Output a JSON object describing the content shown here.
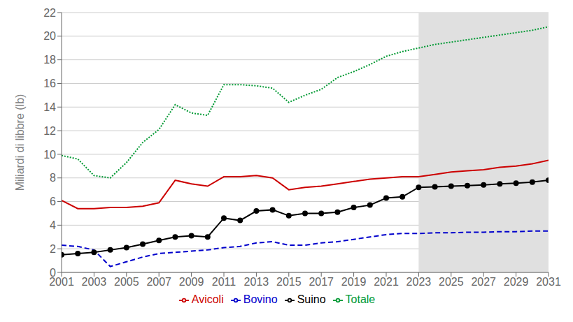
{
  "chart_data": {
    "type": "line",
    "title": "",
    "ylabel": "Miliardi di libbre (lb)",
    "x": [
      2001,
      2002,
      2003,
      2004,
      2005,
      2006,
      2007,
      2008,
      2009,
      2010,
      2011,
      2012,
      2013,
      2014,
      2015,
      2016,
      2017,
      2018,
      2019,
      2020,
      2021,
      2022,
      2023,
      2024,
      2025,
      2026,
      2027,
      2028,
      2029,
      2030,
      2031
    ],
    "series": [
      {
        "name": "Bovino",
        "color": "#0000cc",
        "line_style": "dashed",
        "values": [
          2.3,
          2.2,
          1.9,
          0.5,
          0.9,
          1.3,
          1.6,
          1.7,
          1.8,
          1.9,
          2.1,
          2.2,
          2.5,
          2.6,
          2.3,
          2.3,
          2.5,
          2.6,
          2.8,
          3.0,
          3.2,
          3.3,
          3.3,
          3.35,
          3.35,
          3.4,
          3.4,
          3.45,
          3.45,
          3.5,
          3.5
        ]
      },
      {
        "name": "Suino",
        "color": "#000000",
        "line_style": "solid",
        "marker": "circle",
        "values": [
          1.5,
          1.6,
          1.7,
          1.9,
          2.1,
          2.4,
          2.7,
          3.0,
          3.1,
          3.0,
          4.6,
          4.4,
          5.2,
          5.3,
          4.8,
          5.0,
          5.0,
          5.1,
          5.5,
          5.7,
          6.3,
          6.4,
          7.2,
          7.25,
          7.3,
          7.35,
          7.4,
          7.5,
          7.55,
          7.65,
          7.8
        ]
      },
      {
        "name": "Avicoli",
        "color": "#cc0000",
        "line_style": "solid",
        "values": [
          6.1,
          5.4,
          5.4,
          5.5,
          5.5,
          5.6,
          5.9,
          7.8,
          7.5,
          7.3,
          8.1,
          8.1,
          8.2,
          8.0,
          7.0,
          7.2,
          7.3,
          7.5,
          7.7,
          7.9,
          8.0,
          8.1,
          8.1,
          8.3,
          8.5,
          8.6,
          8.7,
          8.9,
          9.0,
          9.2,
          9.5
        ]
      },
      {
        "name": "Totale",
        "color": "#009933",
        "line_style": "dotted",
        "values": [
          9.9,
          9.6,
          8.2,
          8.0,
          9.3,
          11.0,
          12.1,
          14.2,
          13.5,
          13.3,
          15.9,
          15.9,
          15.8,
          15.6,
          14.4,
          15.0,
          15.5,
          16.5,
          17.0,
          17.6,
          18.3,
          18.7,
          19.0,
          19.3,
          19.5,
          19.7,
          19.9,
          20.1,
          20.3,
          20.5,
          20.8
        ]
      }
    ],
    "shaded_x": [
      2023,
      2031
    ],
    "shaded_color": "#e0e0e0",
    "xlim": [
      2001,
      2031
    ],
    "xticks": [
      2001,
      2003,
      2005,
      2007,
      2009,
      2011,
      2013,
      2015,
      2017,
      2019,
      2021,
      2023,
      2025,
      2027,
      2029,
      2031
    ],
    "ylim": [
      0,
      22
    ],
    "yticks": [
      0,
      2,
      4,
      6,
      8,
      10,
      12,
      14,
      16,
      18,
      20,
      22
    ],
    "grid": "y",
    "legend": "bottom"
  }
}
